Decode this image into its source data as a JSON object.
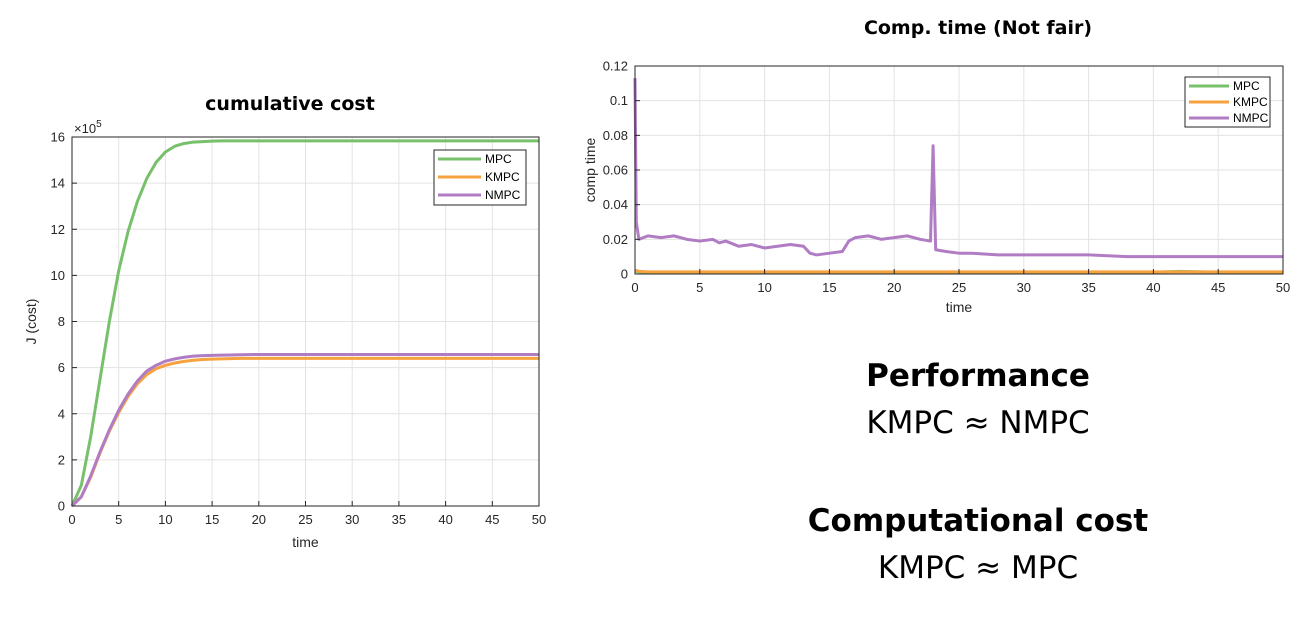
{
  "chart_data": [
    {
      "type": "line",
      "title": "cumulative cost",
      "xlabel": "time",
      "ylabel": "J (cost)",
      "xlim": [
        0,
        50
      ],
      "ylim": [
        0,
        16
      ],
      "y_multiplier": "×10^5",
      "y_multiplier_base": "×10",
      "y_multiplier_exp": "5",
      "xticks": [
        0,
        5,
        10,
        15,
        20,
        25,
        30,
        35,
        40,
        45,
        50
      ],
      "yticks": [
        0,
        2,
        4,
        6,
        8,
        10,
        12,
        14,
        16
      ],
      "grid": true,
      "legend_position": "top-right",
      "x": [
        0,
        1,
        2,
        3,
        4,
        5,
        6,
        7,
        8,
        9,
        10,
        11,
        12,
        13,
        14,
        15,
        16,
        17,
        18,
        20,
        22,
        25,
        30,
        35,
        40,
        45,
        50
      ],
      "series": [
        {
          "name": "MPC",
          "color": "#77c16b",
          "values": [
            0,
            0.9,
            3.0,
            5.5,
            8.0,
            10.2,
            11.9,
            13.2,
            14.2,
            14.9,
            15.35,
            15.6,
            15.72,
            15.78,
            15.8,
            15.82,
            15.83,
            15.83,
            15.83,
            15.83,
            15.83,
            15.83,
            15.83,
            15.83,
            15.83,
            15.83,
            15.83
          ]
        },
        {
          "name": "KMPC",
          "color": "#f6a23f",
          "values": [
            0,
            0.4,
            1.25,
            2.3,
            3.25,
            4.05,
            4.75,
            5.3,
            5.7,
            5.95,
            6.1,
            6.2,
            6.27,
            6.32,
            6.35,
            6.37,
            6.38,
            6.39,
            6.4,
            6.4,
            6.4,
            6.4,
            6.4,
            6.4,
            6.4,
            6.4,
            6.4
          ]
        },
        {
          "name": "NMPC",
          "color": "#b07cc4",
          "values": [
            0,
            0.4,
            1.3,
            2.35,
            3.3,
            4.15,
            4.85,
            5.42,
            5.85,
            6.1,
            6.28,
            6.38,
            6.45,
            6.5,
            6.52,
            6.53,
            6.54,
            6.55,
            6.56,
            6.57,
            6.57,
            6.57,
            6.57,
            6.57,
            6.57,
            6.57,
            6.57
          ]
        }
      ]
    },
    {
      "type": "line",
      "title": "Comp. time (Not fair)",
      "xlabel": "time",
      "ylabel": "comp time",
      "xlim": [
        0,
        50
      ],
      "ylim": [
        0,
        0.12
      ],
      "xticks": [
        0,
        5,
        10,
        15,
        20,
        25,
        30,
        35,
        40,
        45,
        50
      ],
      "yticks": [
        0,
        0.02,
        0.04,
        0.06,
        0.08,
        0.1,
        0.12
      ],
      "yticklabels": [
        "0",
        "0.02",
        "0.04",
        "0.06",
        "0.08",
        "0.1",
        "0.12"
      ],
      "grid": true,
      "legend_position": "top-right",
      "x": [
        0,
        0.1,
        0.3,
        1,
        2,
        3,
        4,
        5,
        6,
        6.5,
        7,
        8,
        9,
        10,
        11,
        12,
        13,
        13.5,
        14,
        15,
        16,
        16.5,
        17,
        18,
        19,
        20,
        21,
        22,
        22.8,
        23,
        23.2,
        24,
        25,
        26,
        28,
        30,
        32,
        35,
        38,
        40,
        42,
        45,
        48,
        50
      ],
      "series": [
        {
          "name": "MPC",
          "color": "#77c16b",
          "values": [
            0.0015,
            0.0015,
            0.0012,
            0.001,
            0.001,
            0.001,
            0.001,
            0.001,
            0.001,
            0.001,
            0.001,
            0.001,
            0.001,
            0.001,
            0.001,
            0.001,
            0.001,
            0.001,
            0.001,
            0.001,
            0.001,
            0.001,
            0.001,
            0.001,
            0.001,
            0.001,
            0.001,
            0.001,
            0.001,
            0.001,
            0.001,
            0.001,
            0.001,
            0.001,
            0.001,
            0.001,
            0.001,
            0.001,
            0.001,
            0.001,
            0.0015,
            0.001,
            0.001,
            0.001
          ]
        },
        {
          "name": "KMPC",
          "color": "#f6a23f",
          "values": [
            0.002,
            0.002,
            0.0015,
            0.0012,
            0.0012,
            0.0012,
            0.0012,
            0.0012,
            0.0012,
            0.0012,
            0.0012,
            0.0012,
            0.0012,
            0.0012,
            0.0012,
            0.0012,
            0.0012,
            0.0012,
            0.0012,
            0.0012,
            0.0012,
            0.0012,
            0.0012,
            0.0012,
            0.0012,
            0.0012,
            0.0012,
            0.0012,
            0.0012,
            0.0012,
            0.0012,
            0.0012,
            0.0012,
            0.0012,
            0.0012,
            0.0012,
            0.0012,
            0.0012,
            0.0012,
            0.0012,
            0.0012,
            0.0012,
            0.0012,
            0.0012
          ]
        },
        {
          "name": "NMPC",
          "color": "#b07cc4",
          "values": [
            0.113,
            0.03,
            0.02,
            0.022,
            0.021,
            0.022,
            0.02,
            0.019,
            0.02,
            0.018,
            0.019,
            0.016,
            0.017,
            0.015,
            0.016,
            0.017,
            0.016,
            0.012,
            0.011,
            0.012,
            0.013,
            0.019,
            0.021,
            0.022,
            0.02,
            0.021,
            0.022,
            0.02,
            0.019,
            0.074,
            0.014,
            0.013,
            0.012,
            0.012,
            0.011,
            0.011,
            0.011,
            0.011,
            0.01,
            0.01,
            0.01,
            0.01,
            0.01,
            0.01
          ]
        }
      ]
    }
  ],
  "text": {
    "performance_heading": "Performance",
    "performance_line": "KMPC ≈ NMPC",
    "comp_heading": "Computational cost",
    "comp_line": "KMPC ≈ MPC"
  }
}
